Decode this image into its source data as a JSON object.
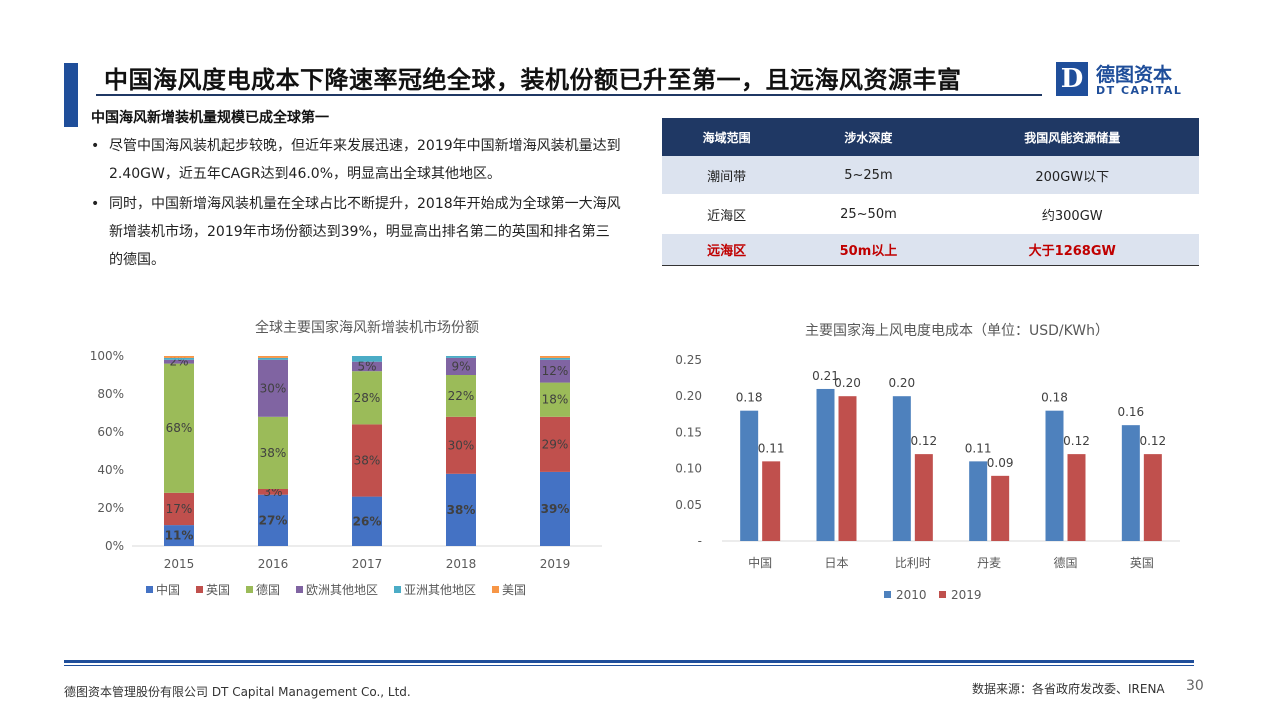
{
  "header": {
    "title": "中国海风度电成本下降速率冠绝全球，装机份额已升至第一，且远海风资源丰富",
    "logo_mark": "D",
    "logo_cn": "德图资本",
    "logo_en": "DT CAPITAL"
  },
  "left_text": {
    "subtitle": "中国海风新增装机量规模已成全球第一",
    "bullets": [
      "尽管中国海风装机起步较晚，但近年来发展迅速，2019年中国新增海风装机量达到2.40GW，近五年CAGR达到46.0%，明显高出全球其他地区。",
      "同时，中国新增海风装机量在全球占比不断提升，2018年开始成为全球第一大海风新增装机市场，2019年市场份额达到39%，明显高出排名第二的英国和排名第三的德国。"
    ]
  },
  "resource_table": {
    "headers": [
      "海域范围",
      "涉水深度",
      "我国风能资源储量"
    ],
    "rows": [
      [
        "潮间带",
        "5~25m",
        "200GW以下"
      ],
      [
        "近海区",
        "25~50m",
        "约300GW"
      ],
      [
        "远海区",
        "50m以上",
        "大于1268GW"
      ]
    ],
    "highlight_color": "#c00000"
  },
  "chart_data": [
    {
      "type": "bar",
      "stacked": true,
      "title": "全球主要国家海风新增装机市场份额",
      "categories": [
        "2015",
        "2016",
        "2017",
        "2018",
        "2019"
      ],
      "yticks": [
        "0%",
        "20%",
        "40%",
        "60%",
        "80%",
        "100%"
      ],
      "ylim": [
        0,
        100
      ],
      "series": [
        {
          "name": "中国",
          "color": "#4472c4",
          "values": [
            11,
            27,
            26,
            38,
            39
          ],
          "labels": [
            "11%",
            "27%",
            "26%",
            "38%",
            "39%"
          ]
        },
        {
          "name": "英国",
          "color": "#c0504d",
          "values": [
            17,
            3,
            38,
            30,
            29
          ],
          "labels": [
            "17%",
            "3%",
            "38%",
            "30%",
            "29%"
          ]
        },
        {
          "name": "德国",
          "color": "#9bbb59",
          "values": [
            68,
            38,
            28,
            22,
            18
          ],
          "labels": [
            "68%",
            "38%",
            "28%",
            "22%",
            "18%"
          ]
        },
        {
          "name": "欧洲其他地区",
          "color": "#8064a2",
          "values": [
            2,
            30,
            5,
            9,
            12
          ],
          "labels": [
            "2%",
            "30%",
            "5%",
            "9%",
            "12%"
          ]
        },
        {
          "name": "亚洲其他地区",
          "color": "#4bacc6",
          "values": [
            1,
            1,
            3,
            1,
            1
          ],
          "labels": [
            "",
            "",
            "",
            "",
            ""
          ]
        },
        {
          "name": "美国",
          "color": "#f79646",
          "values": [
            1,
            1,
            0,
            0,
            1
          ],
          "labels": [
            "",
            "",
            "",
            "",
            ""
          ]
        }
      ],
      "legend": "bottom"
    },
    {
      "type": "bar",
      "title": "主要国家海上风电度电成本（单位：USD/KWh）",
      "categories": [
        "中国",
        "日本",
        "比利时",
        "丹麦",
        "德国",
        "英国"
      ],
      "yticks": [
        "-",
        "0.05",
        "0.10",
        "0.15",
        "0.20",
        "0.25"
      ],
      "ylim": [
        0,
        0.25
      ],
      "series": [
        {
          "name": "2010",
          "color": "#4e81bd",
          "values": [
            0.18,
            0.21,
            0.2,
            0.11,
            0.18,
            0.16
          ],
          "labels": [
            "0.18",
            "0.21",
            "0.20",
            "0.11",
            "0.18",
            "0.16"
          ]
        },
        {
          "name": "2019",
          "color": "#c0504d",
          "values": [
            0.11,
            0.2,
            0.12,
            0.09,
            0.12,
            0.12
          ],
          "labels": [
            "0.11",
            "0.20",
            "0.12",
            "0.09",
            "0.12",
            "0.12"
          ]
        }
      ],
      "legend": "bottom"
    }
  ],
  "footer": {
    "company": "德图资本管理股份有限公司 DT Capital Management Co., Ltd.",
    "source": "数据来源：各省政府发改委、IRENA",
    "page": "30"
  }
}
